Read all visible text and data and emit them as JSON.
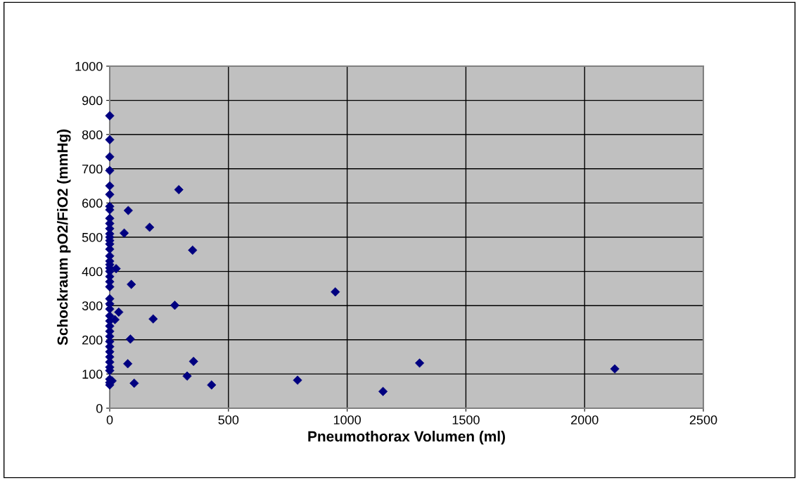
{
  "chart_data": {
    "type": "scatter",
    "xlabel": "Pneumothorax Volumen (ml)",
    "ylabel": "Schockraum pO2/FiO2 (mmHg)",
    "xlim": [
      0,
      2500
    ],
    "xticks": [
      0,
      500,
      1000,
      1500,
      2000,
      2500
    ],
    "ylim": [
      0,
      1000
    ],
    "yticks": [
      0,
      100,
      200,
      300,
      400,
      500,
      600,
      700,
      800,
      900,
      1000
    ],
    "grid": true,
    "marker": "diamond",
    "legend": false,
    "series": [
      {
        "color": "#000080",
        "x": [
          0,
          0,
          0,
          0,
          0,
          0,
          0,
          0,
          0,
          0,
          0,
          0,
          0,
          0,
          0,
          0,
          0,
          0,
          0,
          0,
          0,
          0,
          0,
          0,
          0,
          0,
          0,
          0,
          0,
          0,
          0,
          0,
          0,
          0,
          0,
          0,
          0,
          0,
          0,
          0,
          0,
          0,
          10,
          291,
          78,
          168,
          61,
          349,
          27,
          91,
          274,
          38,
          22,
          183,
          87,
          76,
          353,
          326,
          103,
          429,
          791,
          950,
          1151,
          1305,
          2127
        ],
        "values": [
          855,
          785,
          735,
          695,
          650,
          625,
          590,
          580,
          555,
          540,
          525,
          510,
          500,
          490,
          480,
          465,
          445,
          430,
          420,
          410,
          400,
          385,
          370,
          355,
          320,
          305,
          290,
          270,
          255,
          240,
          225,
          210,
          195,
          180,
          165,
          150,
          135,
          120,
          110,
          85,
          75,
          68,
          80,
          639,
          578,
          529,
          512,
          462,
          408,
          362,
          301,
          281,
          259,
          261,
          202,
          130,
          137,
          94,
          73,
          68,
          82,
          340,
          49,
          132,
          115
        ]
      }
    ]
  }
}
